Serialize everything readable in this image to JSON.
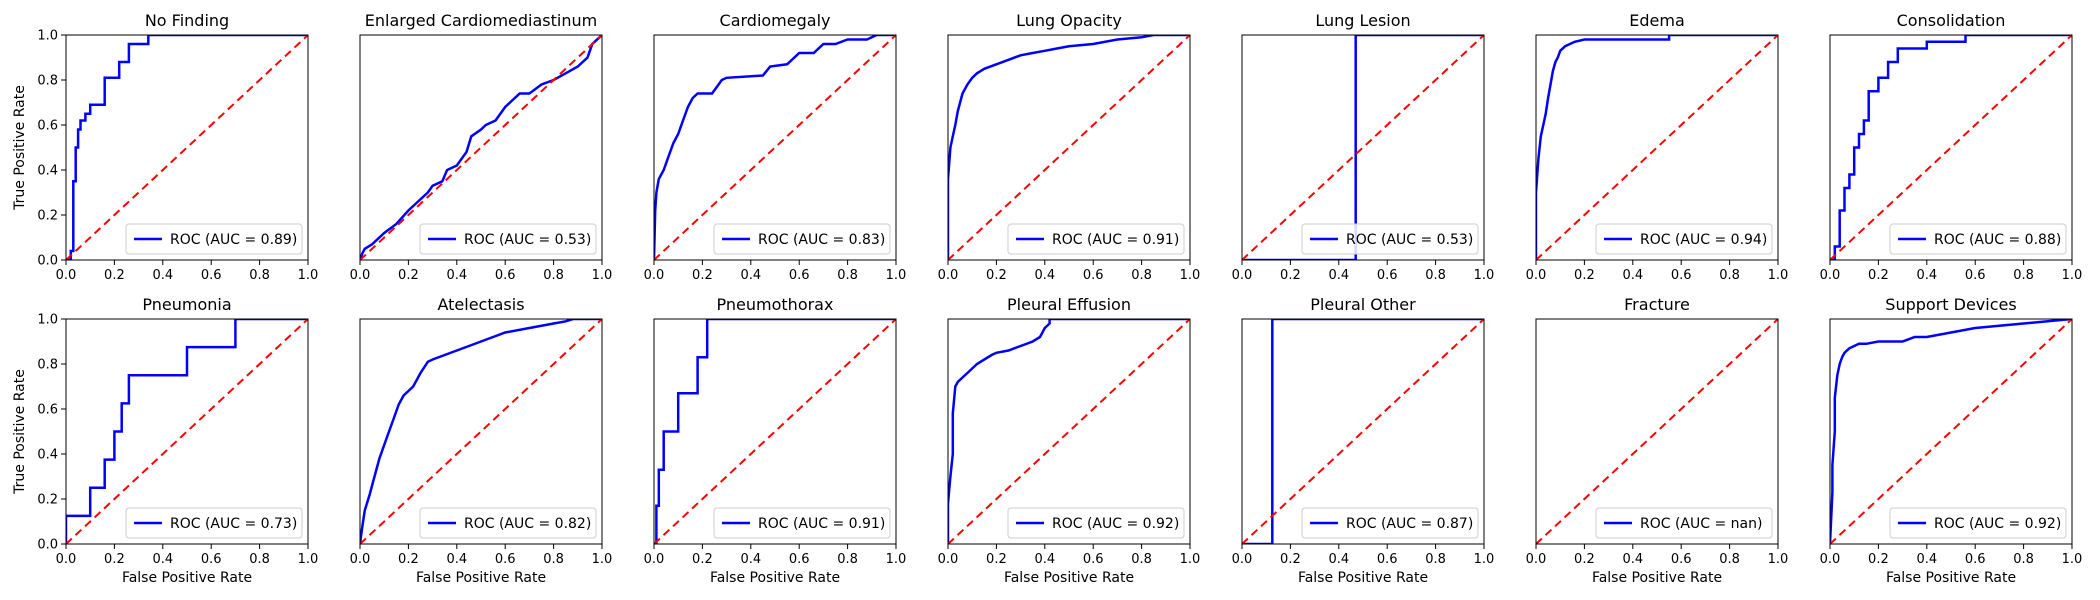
{
  "figure": {
    "xlabel": "False Positive Rate",
    "ylabel": "True Positive Rate",
    "tick_labels": [
      "0.0",
      "0.2",
      "0.4",
      "0.6",
      "0.8",
      "1.0"
    ],
    "colors": {
      "roc": "#0000ff",
      "chance": "#ff0000",
      "axes": "#000000"
    }
  },
  "chart_data": [
    {
      "type": "line",
      "title": "No Finding",
      "legend_location": "lower right",
      "xlim": [
        0,
        1
      ],
      "ylim": [
        0,
        1
      ],
      "series": [
        {
          "name": "ROC (AUC = 0.89)",
          "color": "#0000ff",
          "style": "solid",
          "x": [
            0,
            0.02,
            0.02,
            0.03,
            0.03,
            0.04,
            0.04,
            0.05,
            0.05,
            0.06,
            0.06,
            0.08,
            0.08,
            0.1,
            0.1,
            0.16,
            0.16,
            0.22,
            0.22,
            0.26,
            0.26,
            0.34,
            0.34,
            1.0
          ],
          "y": [
            0,
            0,
            0.04,
            0.04,
            0.35,
            0.35,
            0.5,
            0.5,
            0.58,
            0.58,
            0.62,
            0.62,
            0.65,
            0.65,
            0.69,
            0.69,
            0.81,
            0.81,
            0.88,
            0.88,
            0.96,
            0.96,
            1.0,
            1.0
          ]
        },
        {
          "name": "",
          "color": "#ff0000",
          "style": "dashed",
          "x": [
            0,
            1
          ],
          "y": [
            0,
            1
          ]
        }
      ]
    },
    {
      "type": "line",
      "title": "Enlarged Cardiomediastinum",
      "legend_location": "lower right",
      "xlim": [
        0,
        1
      ],
      "ylim": [
        0,
        1
      ],
      "series": [
        {
          "name": "ROC (AUC = 0.53)",
          "color": "#0000ff",
          "style": "solid",
          "x": [
            0,
            0.01,
            0.02,
            0.05,
            0.1,
            0.15,
            0.2,
            0.24,
            0.28,
            0.3,
            0.34,
            0.36,
            0.4,
            0.44,
            0.46,
            0.5,
            0.52,
            0.56,
            0.6,
            0.62,
            0.66,
            0.7,
            0.75,
            0.8,
            0.85,
            0.9,
            0.94,
            0.96,
            1.0
          ],
          "y": [
            0,
            0.03,
            0.05,
            0.07,
            0.12,
            0.16,
            0.22,
            0.26,
            0.3,
            0.33,
            0.35,
            0.4,
            0.42,
            0.48,
            0.55,
            0.58,
            0.6,
            0.62,
            0.68,
            0.7,
            0.74,
            0.74,
            0.78,
            0.8,
            0.83,
            0.86,
            0.9,
            0.96,
            1.0
          ]
        },
        {
          "name": "",
          "color": "#ff0000",
          "style": "dashed",
          "x": [
            0,
            1
          ],
          "y": [
            0,
            1
          ]
        }
      ]
    },
    {
      "type": "line",
      "title": "Cardiomegaly",
      "legend_location": "lower right",
      "xlim": [
        0,
        1
      ],
      "ylim": [
        0,
        1
      ],
      "series": [
        {
          "name": "ROC (AUC = 0.83)",
          "color": "#0000ff",
          "style": "solid",
          "x": [
            0,
            0.005,
            0.01,
            0.02,
            0.04,
            0.06,
            0.08,
            0.1,
            0.12,
            0.14,
            0.16,
            0.18,
            0.2,
            0.24,
            0.28,
            0.3,
            0.45,
            0.48,
            0.55,
            0.6,
            0.66,
            0.7,
            0.75,
            0.8,
            0.85,
            0.88,
            0.92,
            1.0
          ],
          "y": [
            0,
            0.22,
            0.3,
            0.36,
            0.4,
            0.46,
            0.52,
            0.56,
            0.62,
            0.68,
            0.72,
            0.74,
            0.74,
            0.74,
            0.8,
            0.81,
            0.82,
            0.86,
            0.87,
            0.92,
            0.92,
            0.96,
            0.96,
            0.98,
            0.98,
            0.98,
            1.0,
            1.0
          ]
        },
        {
          "name": "",
          "color": "#ff0000",
          "style": "dashed",
          "x": [
            0,
            1
          ],
          "y": [
            0,
            1
          ]
        }
      ]
    },
    {
      "type": "line",
      "title": "Lung Opacity",
      "legend_location": "lower right",
      "xlim": [
        0,
        1
      ],
      "ylim": [
        0,
        1
      ],
      "series": [
        {
          "name": "ROC (AUC = 0.91)",
          "color": "#0000ff",
          "style": "solid",
          "x": [
            0,
            0,
            0.01,
            0.02,
            0.03,
            0.04,
            0.05,
            0.06,
            0.08,
            0.1,
            0.12,
            0.15,
            0.2,
            0.25,
            0.3,
            0.35,
            0.4,
            0.45,
            0.5,
            0.6,
            0.7,
            0.8,
            0.85,
            1.0
          ],
          "y": [
            0,
            0.36,
            0.5,
            0.55,
            0.6,
            0.66,
            0.7,
            0.74,
            0.78,
            0.81,
            0.83,
            0.85,
            0.87,
            0.89,
            0.91,
            0.92,
            0.93,
            0.94,
            0.95,
            0.96,
            0.98,
            0.99,
            1.0,
            1.0
          ]
        },
        {
          "name": "",
          "color": "#ff0000",
          "style": "dashed",
          "x": [
            0,
            1
          ],
          "y": [
            0,
            1
          ]
        }
      ]
    },
    {
      "type": "line",
      "title": "Lung Lesion",
      "legend_location": "lower right",
      "xlim": [
        0,
        1
      ],
      "ylim": [
        0,
        1
      ],
      "series": [
        {
          "name": "ROC (AUC = 0.53)",
          "color": "#0000ff",
          "style": "solid",
          "x": [
            0,
            0.47,
            0.47,
            1.0
          ],
          "y": [
            0,
            0,
            1.0,
            1.0
          ]
        },
        {
          "name": "",
          "color": "#ff0000",
          "style": "dashed",
          "x": [
            0,
            1
          ],
          "y": [
            0,
            1
          ]
        }
      ]
    },
    {
      "type": "line",
      "title": "Edema",
      "legend_location": "lower right",
      "xlim": [
        0,
        1
      ],
      "ylim": [
        0,
        1
      ],
      "series": [
        {
          "name": "ROC (AUC = 0.94)",
          "color": "#0000ff",
          "style": "solid",
          "x": [
            0,
            0,
            0.01,
            0.02,
            0.03,
            0.04,
            0.05,
            0.06,
            0.07,
            0.08,
            0.09,
            0.1,
            0.12,
            0.14,
            0.16,
            0.2,
            0.55,
            0.55,
            1.0
          ],
          "y": [
            0,
            0.3,
            0.45,
            0.55,
            0.6,
            0.65,
            0.72,
            0.78,
            0.84,
            0.88,
            0.9,
            0.93,
            0.95,
            0.96,
            0.97,
            0.98,
            0.98,
            1.0,
            1.0
          ]
        },
        {
          "name": "",
          "color": "#ff0000",
          "style": "dashed",
          "x": [
            0,
            1
          ],
          "y": [
            0,
            1
          ]
        }
      ]
    },
    {
      "type": "line",
      "title": "Consolidation",
      "legend_location": "lower right",
      "xlim": [
        0,
        1
      ],
      "ylim": [
        0,
        1
      ],
      "series": [
        {
          "name": "ROC (AUC = 0.88)",
          "color": "#0000ff",
          "style": "solid",
          "x": [
            0,
            0.02,
            0.02,
            0.04,
            0.04,
            0.06,
            0.06,
            0.08,
            0.08,
            0.1,
            0.1,
            0.12,
            0.12,
            0.14,
            0.14,
            0.16,
            0.16,
            0.2,
            0.2,
            0.24,
            0.24,
            0.28,
            0.28,
            0.4,
            0.4,
            0.56,
            0.56,
            1.0
          ],
          "y": [
            0,
            0,
            0.06,
            0.06,
            0.22,
            0.22,
            0.32,
            0.32,
            0.38,
            0.38,
            0.5,
            0.5,
            0.56,
            0.56,
            0.62,
            0.62,
            0.75,
            0.75,
            0.81,
            0.81,
            0.88,
            0.88,
            0.94,
            0.94,
            0.97,
            0.97,
            1.0,
            1.0
          ]
        },
        {
          "name": "",
          "color": "#ff0000",
          "style": "dashed",
          "x": [
            0,
            1
          ],
          "y": [
            0,
            1
          ]
        }
      ]
    },
    {
      "type": "line",
      "title": "Pneumonia",
      "legend_location": "lower right",
      "xlim": [
        0,
        1
      ],
      "ylim": [
        0,
        1
      ],
      "series": [
        {
          "name": "ROC (AUC = 0.73)",
          "color": "#0000ff",
          "style": "solid",
          "x": [
            0,
            0,
            0.1,
            0.1,
            0.16,
            0.16,
            0.2,
            0.2,
            0.23,
            0.23,
            0.26,
            0.26,
            0.5,
            0.5,
            0.7,
            0.7,
            1.0
          ],
          "y": [
            0,
            0.125,
            0.125,
            0.25,
            0.25,
            0.375,
            0.375,
            0.5,
            0.5,
            0.625,
            0.625,
            0.75,
            0.75,
            0.875,
            0.875,
            1.0,
            1.0
          ]
        },
        {
          "name": "",
          "color": "#ff0000",
          "style": "dashed",
          "x": [
            0,
            1
          ],
          "y": [
            0,
            1
          ]
        }
      ]
    },
    {
      "type": "line",
      "title": "Atelectasis",
      "legend_location": "lower right",
      "xlim": [
        0,
        1
      ],
      "ylim": [
        0,
        1
      ],
      "series": [
        {
          "name": "ROC (AUC = 0.82)",
          "color": "#0000ff",
          "style": "solid",
          "x": [
            0,
            0.01,
            0.02,
            0.04,
            0.06,
            0.08,
            0.1,
            0.12,
            0.14,
            0.16,
            0.18,
            0.2,
            0.22,
            0.25,
            0.28,
            0.3,
            0.35,
            0.4,
            0.45,
            0.5,
            0.55,
            0.6,
            0.7,
            0.8,
            0.85,
            0.88,
            1.0
          ],
          "y": [
            0,
            0.08,
            0.15,
            0.22,
            0.3,
            0.38,
            0.44,
            0.5,
            0.56,
            0.62,
            0.66,
            0.68,
            0.7,
            0.76,
            0.81,
            0.82,
            0.84,
            0.86,
            0.88,
            0.9,
            0.92,
            0.94,
            0.96,
            0.98,
            0.99,
            1.0,
            1.0
          ]
        },
        {
          "name": "",
          "color": "#ff0000",
          "style": "dashed",
          "x": [
            0,
            1
          ],
          "y": [
            0,
            1
          ]
        }
      ]
    },
    {
      "type": "line",
      "title": "Pneumothorax",
      "legend_location": "lower right",
      "xlim": [
        0,
        1
      ],
      "ylim": [
        0,
        1
      ],
      "series": [
        {
          "name": "ROC (AUC = 0.91)",
          "color": "#0000ff",
          "style": "solid",
          "x": [
            0,
            0.01,
            0.01,
            0.02,
            0.02,
            0.04,
            0.04,
            0.1,
            0.1,
            0.18,
            0.18,
            0.22,
            0.22,
            1.0
          ],
          "y": [
            0,
            0,
            0.17,
            0.17,
            0.33,
            0.33,
            0.5,
            0.5,
            0.67,
            0.67,
            0.83,
            0.83,
            1.0,
            1.0
          ]
        },
        {
          "name": "",
          "color": "#ff0000",
          "style": "dashed",
          "x": [
            0,
            1
          ],
          "y": [
            0,
            1
          ]
        }
      ]
    },
    {
      "type": "line",
      "title": "Pleural Effusion",
      "legend_location": "lower right",
      "xlim": [
        0,
        1
      ],
      "ylim": [
        0,
        1
      ],
      "series": [
        {
          "name": "ROC (AUC = 0.92)",
          "color": "#0000ff",
          "style": "solid",
          "x": [
            0,
            0,
            0.01,
            0.02,
            0.02,
            0.03,
            0.04,
            0.06,
            0.08,
            0.1,
            0.12,
            0.15,
            0.18,
            0.2,
            0.25,
            0.3,
            0.35,
            0.38,
            0.4,
            0.42,
            0.42,
            1.0
          ],
          "y": [
            0,
            0.18,
            0.3,
            0.4,
            0.58,
            0.7,
            0.72,
            0.74,
            0.76,
            0.78,
            0.8,
            0.82,
            0.84,
            0.85,
            0.86,
            0.88,
            0.9,
            0.92,
            0.96,
            0.98,
            1.0,
            1.0
          ]
        },
        {
          "name": "",
          "color": "#ff0000",
          "style": "dashed",
          "x": [
            0,
            1
          ],
          "y": [
            0,
            1
          ]
        }
      ]
    },
    {
      "type": "line",
      "title": "Pleural Other",
      "legend_location": "lower right",
      "xlim": [
        0,
        1
      ],
      "ylim": [
        0,
        1
      ],
      "series": [
        {
          "name": "ROC (AUC = 0.87)",
          "color": "#0000ff",
          "style": "solid",
          "x": [
            0,
            0.125,
            0.125,
            1.0
          ],
          "y": [
            0,
            0,
            1.0,
            1.0
          ]
        },
        {
          "name": "",
          "color": "#ff0000",
          "style": "dashed",
          "x": [
            0,
            1
          ],
          "y": [
            0,
            1
          ]
        }
      ]
    },
    {
      "type": "line",
      "title": "Fracture",
      "legend_location": "lower right",
      "xlim": [
        0,
        1
      ],
      "ylim": [
        0,
        1
      ],
      "series": [
        {
          "name": "ROC (AUC = nan)",
          "color": "#0000ff",
          "style": "solid",
          "x": [],
          "y": []
        },
        {
          "name": "",
          "color": "#ff0000",
          "style": "dashed",
          "x": [
            0,
            1
          ],
          "y": [
            0,
            1
          ]
        }
      ]
    },
    {
      "type": "line",
      "title": "Support Devices",
      "legend_location": "lower right",
      "xlim": [
        0,
        1
      ],
      "ylim": [
        0,
        1
      ],
      "series": [
        {
          "name": "ROC (AUC = 0.92)",
          "color": "#0000ff",
          "style": "solid",
          "x": [
            0,
            0.01,
            0.01,
            0.02,
            0.02,
            0.03,
            0.04,
            0.05,
            0.06,
            0.07,
            0.08,
            0.1,
            0.12,
            0.15,
            0.2,
            0.3,
            0.35,
            0.4,
            0.5,
            0.6,
            0.7,
            0.8,
            0.9,
            1.0
          ],
          "y": [
            0,
            0.23,
            0.35,
            0.5,
            0.65,
            0.75,
            0.8,
            0.83,
            0.85,
            0.86,
            0.87,
            0.88,
            0.89,
            0.89,
            0.9,
            0.9,
            0.92,
            0.92,
            0.94,
            0.96,
            0.97,
            0.98,
            0.99,
            1.0
          ]
        },
        {
          "name": "",
          "color": "#ff0000",
          "style": "dashed",
          "x": [
            0,
            1
          ],
          "y": [
            0,
            1
          ]
        }
      ]
    }
  ]
}
